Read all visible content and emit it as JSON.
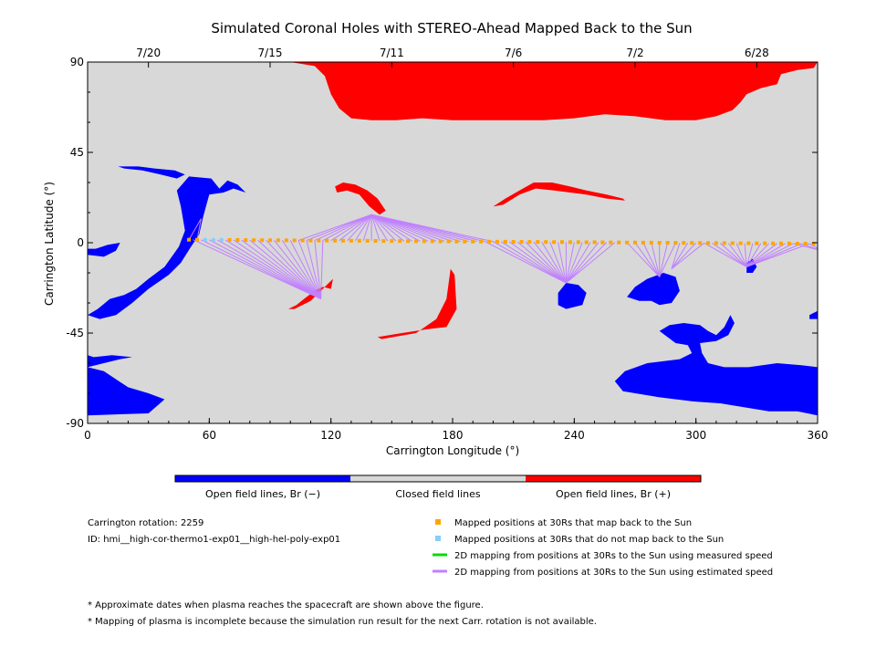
{
  "chart_data": {
    "type": "scatter",
    "title": "Simulated Coronal Holes with STEREO-Ahead Mapped Back to the Sun",
    "xlabel": "Carrington Longitude (°)",
    "ylabel": "Carrington Latitude (°)",
    "xlim": [
      0,
      360
    ],
    "ylim": [
      -90,
      90
    ],
    "x_ticks": [
      0,
      60,
      120,
      180,
      240,
      300,
      360
    ],
    "y_ticks": [
      -90,
      -45,
      0,
      45,
      90
    ],
    "top_axis": {
      "ticks": [
        {
          "label": "7/20",
          "lon": 30
        },
        {
          "label": "7/15",
          "lon": 90
        },
        {
          "label": "7/11",
          "lon": 150
        },
        {
          "label": "7/6",
          "lon": 210
        },
        {
          "label": "7/2",
          "lon": 270
        },
        {
          "label": "6/28",
          "lon": 330
        }
      ]
    },
    "colors": {
      "open_negative": "#0000ff",
      "closed": "#d8d8d8",
      "open_positive": "#ff0000",
      "mapped": "#ffa500",
      "not_mapped": "#87cefa",
      "measured_speed": "#00dd00",
      "estimated_speed": "#c080ff"
    },
    "colorbar": {
      "labels": [
        "Open field lines, Br (−)",
        "Closed field lines",
        "Open field lines, Br (+)"
      ]
    },
    "info": {
      "rotation": "Carrington rotation: 2259",
      "id": "ID: hmi__high-cor-thermo1-exp01__high-hel-poly-exp01"
    },
    "legend": [
      {
        "label": "Mapped positions at 30Rs that map back to the Sun",
        "marker": "square",
        "color": "#ffa500"
      },
      {
        "label": "Mapped positions at 30Rs that do not map back to the Sun",
        "marker": "square",
        "color": "#87cefa"
      },
      {
        "label": "2D mapping from positions at 30Rs to the Sun using measured speed",
        "marker": "line",
        "color": "#00dd00"
      },
      {
        "label": "2D mapping from positions at 30Rs to the Sun using estimated speed",
        "marker": "line",
        "color": "#c080ff"
      }
    ],
    "notes": [
      "* Approximate dates when plasma reaches the spacecraft are shown above the figure.",
      "* Mapping of plasma is incomplete because the simulation run result for the next Carr. rotation is not available."
    ],
    "mapped_positions_30Rs": {
      "lon_start": 50,
      "lon_end": 360,
      "spacing_deg": 4,
      "lat_start": 1.5,
      "lat_end": -0.5,
      "not_mapped_lon_range": [
        58,
        66
      ]
    },
    "estimated_speed_mappings": [
      {
        "from_lon_range": [
          50,
          54
        ],
        "to": [
          56,
          12
        ]
      },
      {
        "from_lon_range": [
          52,
          118
        ],
        "to": [
          115,
          -28
        ]
      },
      {
        "from_lon_range": [
          104,
          200
        ],
        "to": [
          140,
          14
        ]
      },
      {
        "from_lon_range": [
          196,
          260
        ],
        "to": [
          236,
          -20
        ]
      },
      {
        "from_lon_range": [
          266,
          292
        ],
        "to": [
          282,
          -17
        ]
      },
      {
        "from_lon_range": [
          292,
          304
        ],
        "to": [
          288,
          -13
        ]
      },
      {
        "from_lon_range": [
          304,
          356
        ],
        "to": [
          325,
          -12
        ]
      },
      {
        "from_lon_range": [
          348,
          360
        ],
        "to": [
          362,
          -4
        ]
      }
    ],
    "open_field_regions": [
      {
        "polarity": "positive",
        "points": [
          [
            0,
            90
          ],
          [
            360,
            90
          ],
          [
            358,
            87
          ],
          [
            350,
            86
          ],
          [
            342,
            84
          ],
          [
            340,
            79
          ],
          [
            332,
            77
          ],
          [
            325,
            74
          ],
          [
            322,
            70
          ],
          [
            318,
            66
          ],
          [
            310,
            63
          ],
          [
            300,
            61
          ],
          [
            285,
            61
          ],
          [
            270,
            63
          ],
          [
            255,
            64
          ],
          [
            240,
            62
          ],
          [
            225,
            61
          ],
          [
            210,
            61
          ],
          [
            195,
            61
          ],
          [
            180,
            61
          ],
          [
            165,
            62
          ],
          [
            152,
            61
          ],
          [
            140,
            61
          ],
          [
            130,
            62
          ],
          [
            124,
            67
          ],
          [
            120,
            74
          ],
          [
            117,
            83
          ],
          [
            112,
            88
          ],
          [
            100,
            90
          ]
        ]
      },
      {
        "polarity": "positive",
        "points": [
          [
            122,
            28
          ],
          [
            126,
            30
          ],
          [
            132,
            29
          ],
          [
            138,
            26
          ],
          [
            143,
            22
          ],
          [
            147,
            16
          ],
          [
            144,
            14
          ],
          [
            139,
            18
          ],
          [
            134,
            24
          ],
          [
            128,
            26
          ],
          [
            123,
            25
          ]
        ]
      },
      {
        "polarity": "positive",
        "points": [
          [
            200,
            18
          ],
          [
            206,
            22
          ],
          [
            213,
            26
          ],
          [
            220,
            30
          ],
          [
            229,
            30
          ],
          [
            238,
            28
          ],
          [
            246,
            26
          ],
          [
            256,
            24
          ],
          [
            264,
            22
          ],
          [
            265,
            21
          ],
          [
            256,
            22
          ],
          [
            246,
            24
          ],
          [
            238,
            25
          ],
          [
            230,
            26
          ],
          [
            221,
            27
          ],
          [
            213,
            24
          ],
          [
            205,
            19
          ]
        ]
      },
      {
        "polarity": "positive",
        "points": [
          [
            108,
            -27
          ],
          [
            112,
            -24
          ],
          [
            116,
            -22
          ],
          [
            120,
            -23
          ],
          [
            121,
            -18
          ],
          [
            117,
            -22
          ],
          [
            113,
            -26
          ],
          [
            110,
            -29
          ],
          [
            102,
            -33
          ],
          [
            99,
            -33
          ],
          [
            103,
            -31
          ]
        ]
      },
      {
        "polarity": "positive",
        "points": [
          [
            177,
            -42
          ],
          [
            182,
            -33
          ],
          [
            181,
            -16
          ],
          [
            179,
            -13
          ],
          [
            177,
            -28
          ],
          [
            172,
            -38
          ],
          [
            162,
            -45
          ],
          [
            145,
            -48
          ],
          [
            143,
            -47
          ],
          [
            155,
            -45
          ],
          [
            168,
            -43
          ]
        ]
      },
      {
        "polarity": "negative",
        "points": [
          [
            0,
            -36
          ],
          [
            5,
            -33
          ],
          [
            11,
            -28
          ],
          [
            18,
            -26
          ],
          [
            24,
            -23
          ],
          [
            30,
            -18
          ],
          [
            38,
            -12
          ],
          [
            45,
            -2
          ],
          [
            48,
            6
          ],
          [
            46,
            18
          ],
          [
            44,
            26
          ],
          [
            50,
            33
          ],
          [
            61,
            32
          ],
          [
            65,
            27
          ],
          [
            69,
            31
          ],
          [
            74,
            29
          ],
          [
            78,
            25
          ],
          [
            72,
            27
          ],
          [
            67,
            25
          ],
          [
            60,
            24
          ],
          [
            57,
            13
          ],
          [
            55,
            4
          ],
          [
            51,
            -2
          ],
          [
            46,
            -10
          ],
          [
            40,
            -16
          ],
          [
            30,
            -23
          ],
          [
            22,
            -30
          ],
          [
            14,
            -36
          ],
          [
            6,
            -38
          ]
        ]
      },
      {
        "polarity": "negative",
        "points": [
          [
            15,
            38
          ],
          [
            25,
            38
          ],
          [
            33,
            37
          ],
          [
            43,
            36
          ],
          [
            48,
            34
          ],
          [
            44,
            32
          ],
          [
            36,
            34
          ],
          [
            27,
            36
          ],
          [
            18,
            37
          ]
        ]
      },
      {
        "polarity": "negative",
        "points": [
          [
            0,
            -6
          ],
          [
            8,
            -7
          ],
          [
            14,
            -4
          ],
          [
            16,
            0
          ],
          [
            10,
            -1
          ],
          [
            4,
            -3
          ],
          [
            0,
            -3
          ]
        ]
      },
      {
        "polarity": "negative",
        "points": [
          [
            0,
            -62
          ],
          [
            8,
            -60
          ],
          [
            16,
            -58
          ],
          [
            22,
            -57
          ],
          [
            22,
            -57
          ],
          [
            12,
            -56
          ],
          [
            3,
            -57
          ],
          [
            0,
            -56
          ],
          [
            0,
            -86
          ],
          [
            30,
            -85
          ],
          [
            38,
            -78
          ],
          [
            30,
            -75
          ],
          [
            20,
            -72
          ],
          [
            14,
            -68
          ],
          [
            8,
            -64
          ]
        ]
      },
      {
        "polarity": "negative",
        "points": [
          [
            232,
            -25
          ],
          [
            236,
            -20
          ],
          [
            242,
            -21
          ],
          [
            246,
            -25
          ],
          [
            244,
            -31
          ],
          [
            236,
            -33
          ],
          [
            232,
            -31
          ]
        ]
      },
      {
        "polarity": "negative",
        "points": [
          [
            266,
            -27
          ],
          [
            270,
            -22
          ],
          [
            276,
            -18
          ],
          [
            284,
            -15
          ],
          [
            290,
            -17
          ],
          [
            292,
            -24
          ],
          [
            288,
            -30
          ],
          [
            282,
            -31
          ],
          [
            278,
            -29
          ],
          [
            272,
            -29
          ]
        ]
      },
      {
        "polarity": "negative",
        "points": [
          [
            282,
            -44
          ],
          [
            287,
            -41
          ],
          [
            294,
            -40
          ],
          [
            302,
            -41
          ],
          [
            306,
            -44
          ],
          [
            310,
            -46
          ],
          [
            314,
            -42
          ],
          [
            317,
            -36
          ],
          [
            319,
            -40
          ],
          [
            316,
            -46
          ],
          [
            310,
            -49
          ],
          [
            302,
            -50
          ],
          [
            303,
            -55
          ],
          [
            306,
            -60
          ],
          [
            314,
            -62
          ],
          [
            326,
            -62
          ],
          [
            340,
            -60
          ],
          [
            352,
            -61
          ],
          [
            360,
            -62
          ],
          [
            360,
            -86
          ],
          [
            350,
            -84
          ],
          [
            336,
            -84
          ],
          [
            324,
            -82
          ],
          [
            312,
            -80
          ],
          [
            298,
            -79
          ],
          [
            282,
            -77
          ],
          [
            264,
            -74
          ],
          [
            260,
            -69
          ],
          [
            265,
            -64
          ],
          [
            276,
            -60
          ],
          [
            292,
            -58
          ],
          [
            298,
            -55
          ],
          [
            296,
            -51
          ],
          [
            290,
            -50
          ]
        ]
      },
      {
        "polarity": "negative",
        "points": [
          [
            325,
            -10
          ],
          [
            328,
            -8
          ],
          [
            330,
            -12
          ],
          [
            328,
            -15
          ],
          [
            325,
            -15
          ]
        ]
      },
      {
        "polarity": "negative",
        "points": [
          [
            356,
            -36
          ],
          [
            360,
            -34
          ],
          [
            360,
            -38
          ],
          [
            356,
            -38
          ]
        ]
      }
    ],
    "axes_box": {
      "grid": false,
      "legend_position": "below"
    }
  }
}
